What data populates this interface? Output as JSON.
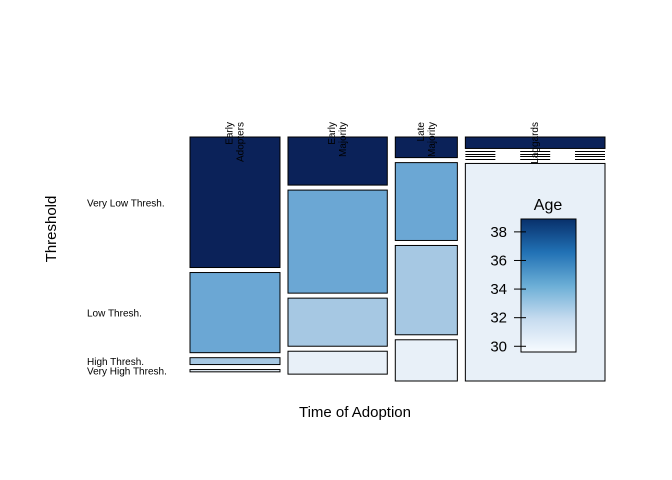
{
  "chart_data": {
    "type": "mosaic",
    "xlabel": "Time of Adoption",
    "ylabel": "Threshold",
    "x_categories": [
      {
        "lines": [
          "Early",
          "Adopters"
        ]
      },
      {
        "lines": [
          "Early",
          "Majority"
        ]
      },
      {
        "lines": [
          "Late",
          "Majority"
        ]
      },
      {
        "lines": [
          "Laggards"
        ]
      }
    ],
    "y_categories": [
      "Very Low Thresh.",
      "Low Thresh.",
      "High Thresh.",
      "Very High Thresh."
    ],
    "column_widths": [
      0.29,
      0.32,
      0.2,
      0.45
    ],
    "proportions": [
      [
        0.57,
        0.35,
        0.03,
        0.01
      ],
      [
        0.21,
        0.45,
        0.21,
        0.1
      ],
      [
        0.09,
        0.34,
        0.39,
        0.18
      ],
      [
        0.05,
        0.0,
        0.0,
        0.95
      ]
    ],
    "cell_colors": [
      [
        "#0b2259",
        "#6ba7d4",
        "#a6c8e3",
        "#e8f0f8"
      ],
      [
        "#0b2259",
        "#6ba7d4",
        "#a6c8e3",
        "#e8f0f8"
      ],
      [
        "#0b2259",
        "#6ba7d4",
        "#a6c8e3",
        "#e8f0f8"
      ],
      [
        "#0b2259",
        "#6ba7d4",
        "#a6c8e3",
        "#e8f0f8"
      ]
    ],
    "legend": {
      "title": "Age",
      "ticks": [
        30,
        32,
        34,
        36,
        38
      ],
      "range": [
        29.6,
        38.9
      ],
      "gradient": [
        "#f7fbff",
        "#c6dbef",
        "#6baed6",
        "#2171b5",
        "#08306b"
      ]
    }
  }
}
